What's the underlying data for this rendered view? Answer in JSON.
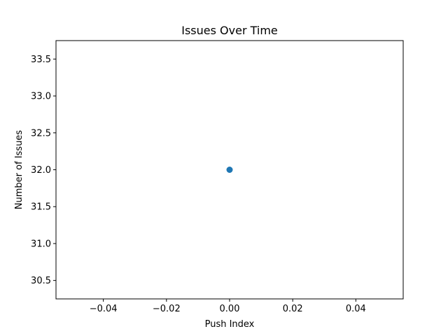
{
  "chart_data": {
    "type": "scatter",
    "title": "Issues Over Time",
    "xlabel": "Push Index",
    "ylabel": "Number of Issues",
    "xlim": [
      -0.055,
      0.055
    ],
    "ylim": [
      30.25,
      33.75
    ],
    "xticks": [
      -0.04,
      -0.02,
      0.0,
      0.02,
      0.04
    ],
    "xtick_labels": [
      "−0.04",
      "−0.02",
      "0.00",
      "0.02",
      "0.04"
    ],
    "yticks": [
      30.5,
      31.0,
      31.5,
      32.0,
      32.5,
      33.0,
      33.5
    ],
    "ytick_labels": [
      "30.5",
      "31.0",
      "31.5",
      "32.0",
      "32.5",
      "33.0",
      "33.5"
    ],
    "grid": false,
    "series": [
      {
        "x": [
          0
        ],
        "y": [
          32
        ],
        "color": "#1f77b4"
      }
    ]
  }
}
